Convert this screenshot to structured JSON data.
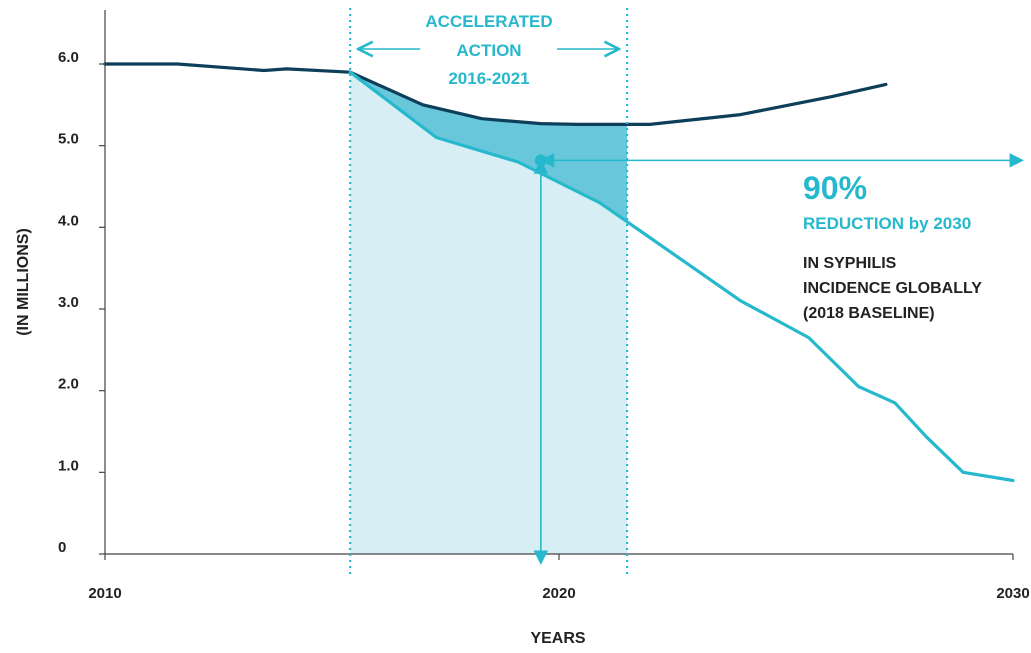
{
  "chart_data": {
    "type": "line",
    "title": "",
    "xlabel": "YEARS",
    "ylabel": "(IN MILLIONS)",
    "xlim": [
      2010,
      2030
    ],
    "ylim": [
      0,
      6.5
    ],
    "x_ticks": [
      "2010",
      "2020",
      "2030"
    ],
    "y_ticks": [
      "0",
      "1.0",
      "2.0",
      "3.0",
      "4.0",
      "5.0",
      "6.0"
    ],
    "grid": false,
    "series": [
      {
        "name": "",
        "color": "#0e3f5a",
        "x": [
          2010,
          2011.6,
          2013.5,
          2014,
          2015.4,
          2017,
          2018.3,
          2019.6,
          2020.4,
          2022,
          2024,
          2026,
          2027.2
        ],
        "y": [
          6.0,
          6.0,
          5.92,
          5.94,
          5.9,
          5.5,
          5.33,
          5.27,
          5.26,
          5.26,
          5.38,
          5.6,
          5.75
        ]
      },
      {
        "name": "",
        "color": "#26b8cc",
        "x": [
          2015.4,
          2017.3,
          2019.1,
          2020.9,
          2024,
          2025.5,
          2026.6,
          2027.4,
          2028.1,
          2028.9,
          2030
        ],
        "y": [
          5.9,
          5.1,
          4.8,
          4.3,
          3.1,
          2.65,
          2.05,
          1.85,
          1.43,
          1.0,
          0.9
        ]
      }
    ],
    "shaded_region": {
      "x": [
        2015.4,
        2021.5
      ],
      "color": "#d7eef4",
      "gap_color": "#68c7da"
    },
    "annotations": {
      "band_label": [
        "ACCELERATED",
        "ACTION",
        "2016-2021"
      ],
      "marker": {
        "x": 2019.6,
        "y": 4.82
      },
      "big_pct": "90%",
      "reduction_label": "REDUCTION by 2030",
      "note_lines": [
        "IN SYPHILIS",
        "INCIDENCE GLOBALLY",
        "(2018 BASELINE)"
      ]
    }
  }
}
